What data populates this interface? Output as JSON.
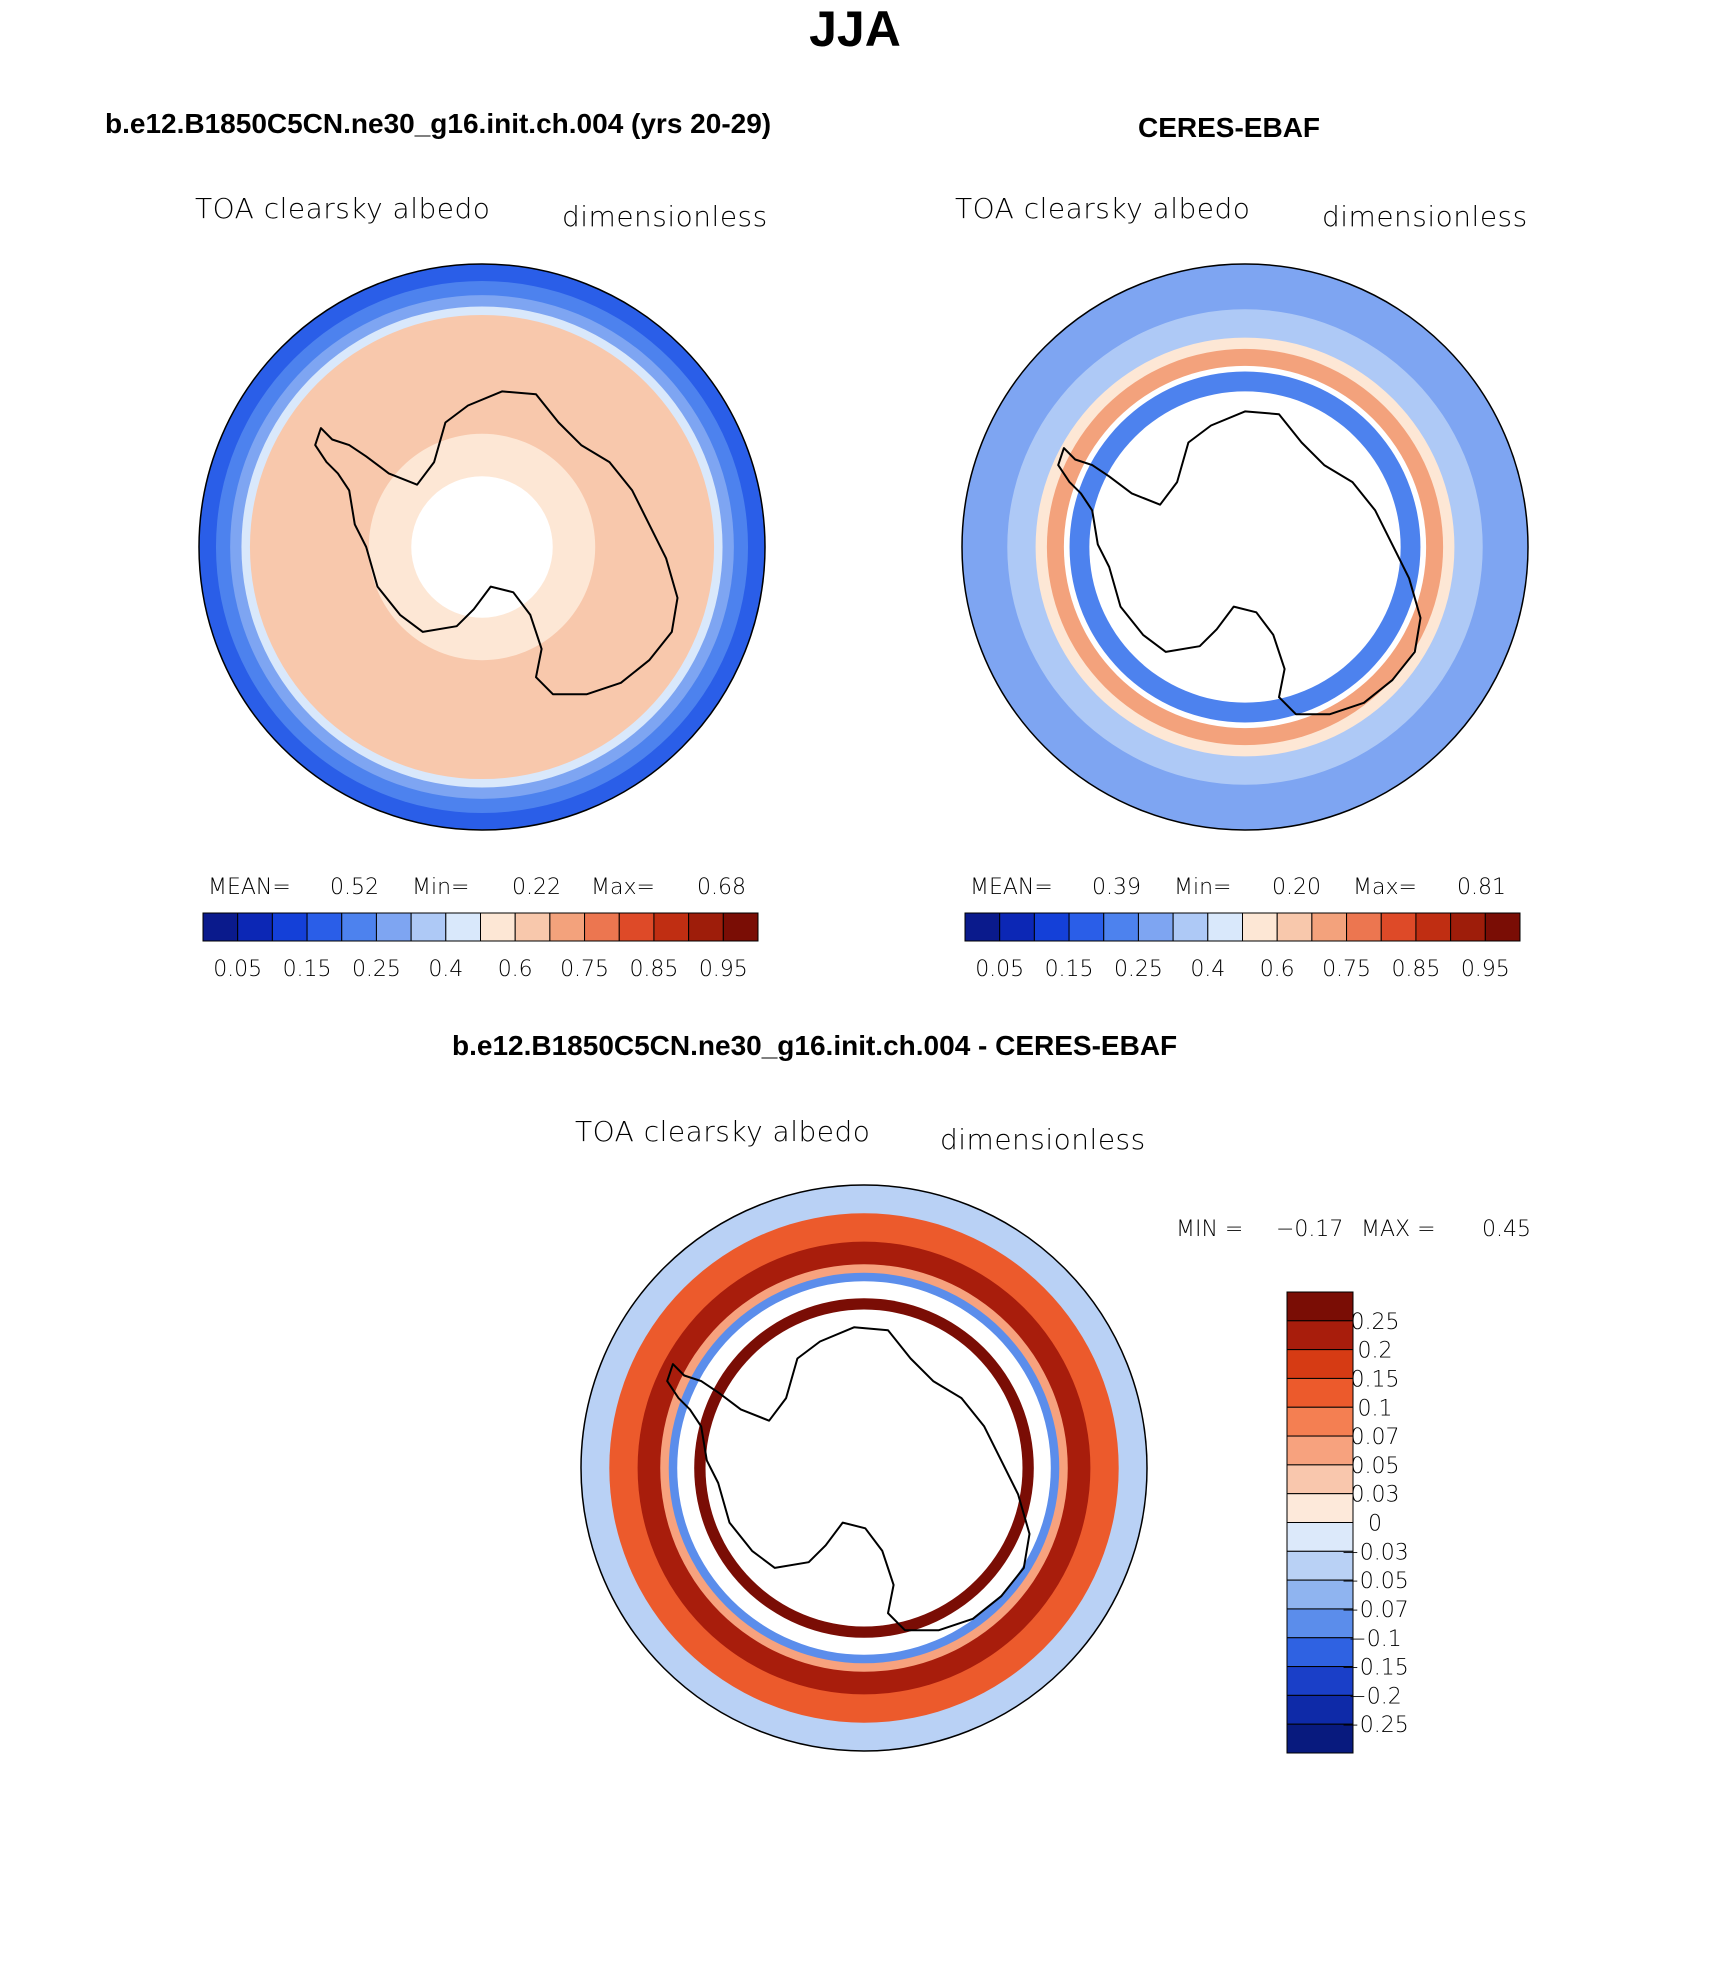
{
  "figure": {
    "title": "JJA",
    "panels": [
      {
        "id": "model",
        "title": "b.e12.B1850C5CN.ne30_g16.init.ch.004 (yrs 20-29)",
        "variable": "TOA clearsky albedo",
        "units": "dimensionless",
        "stats": {
          "mean_label": "MEAN=",
          "mean": "0.52",
          "min_label": "Min=",
          "min": "0.22",
          "max_label": "Max=",
          "max": "0.68"
        }
      },
      {
        "id": "obs",
        "title": "CERES-EBAF",
        "variable": "TOA clearsky albedo",
        "units": "dimensionless",
        "stats": {
          "mean_label": "MEAN=",
          "mean": "0.39",
          "min_label": "Min=",
          "min": "0.20",
          "max_label": "Max=",
          "max": "0.81"
        }
      },
      {
        "id": "diff",
        "title": "b.e12.B1850C5CN.ne30_g16.init.ch.004 - CERES-EBAF",
        "variable": "TOA clearsky albedo",
        "units": "dimensionless",
        "stats": {
          "min_label": "MIN =",
          "min": "−0.17",
          "max_label": "MAX =",
          "max": "0.45"
        }
      }
    ]
  },
  "chart_data": [
    {
      "type": "heatmap",
      "projection": "south-polar-stereographic",
      "title": "b.e12.B1850C5CN.ne30_g16.init.ch.004 (yrs 20-29)",
      "variable": "TOA clearsky albedo",
      "units": "dimensionless",
      "colorbar_labels": [
        "0.05",
        "0.15",
        "0.25",
        "0.4",
        "0.6",
        "0.75",
        "0.85",
        "0.95"
      ],
      "colorbar_colors": [
        "#0a1a8c",
        "#0c27b5",
        "#1440d8",
        "#2a5ee8",
        "#4d82ee",
        "#7ea5f2",
        "#aec9f6",
        "#d9e8fb",
        "#fde7d5",
        "#f8c8ac",
        "#f3a27c",
        "#ec7650",
        "#de4a28",
        "#c02e12",
        "#9e1d0a",
        "#7a0d05"
      ],
      "field_rings": [
        {
          "radius_frac": 1.0,
          "color": "#2a5ee8"
        },
        {
          "radius_frac": 0.94,
          "color": "#4d82ee"
        },
        {
          "radius_frac": 0.89,
          "color": "#7ea5f2"
        },
        {
          "radius_frac": 0.85,
          "color": "#d9e8fb"
        },
        {
          "radius_frac": 0.82,
          "color": "#f8c8ac"
        },
        {
          "radius_frac": 0.4,
          "color": "#fde7d5"
        },
        {
          "radius_frac": 0.25,
          "color": "#ffffff"
        }
      ],
      "stats": {
        "mean": 0.52,
        "min": 0.22,
        "max": 0.68
      }
    },
    {
      "type": "heatmap",
      "projection": "south-polar-stereographic",
      "title": "CERES-EBAF",
      "variable": "TOA clearsky albedo",
      "units": "dimensionless",
      "colorbar_labels": [
        "0.05",
        "0.15",
        "0.25",
        "0.4",
        "0.6",
        "0.75",
        "0.85",
        "0.95"
      ],
      "colorbar_colors": [
        "#0a1a8c",
        "#0c27b5",
        "#1440d8",
        "#2a5ee8",
        "#4d82ee",
        "#7ea5f2",
        "#aec9f6",
        "#d9e8fb",
        "#fde7d5",
        "#f8c8ac",
        "#f3a27c",
        "#ec7650",
        "#de4a28",
        "#c02e12",
        "#9e1d0a",
        "#7a0d05"
      ],
      "field_rings": [
        {
          "radius_frac": 1.0,
          "color": "#7ea5f2"
        },
        {
          "radius_frac": 0.84,
          "color": "#aec9f6"
        },
        {
          "radius_frac": 0.74,
          "color": "#fde7d5"
        },
        {
          "radius_frac": 0.7,
          "color": "#f3a27c"
        },
        {
          "radius_frac": 0.64,
          "color": "#ffffff"
        },
        {
          "radius_frac": 0.62,
          "color": "#4d82ee"
        },
        {
          "radius_frac": 0.55,
          "color": "#ffffff"
        }
      ],
      "stats": {
        "mean": 0.39,
        "min": 0.2,
        "max": 0.81
      }
    },
    {
      "type": "heatmap",
      "projection": "south-polar-stereographic",
      "title": "b.e12.B1850C5CN.ne30_g16.init.ch.004 - CERES-EBAF",
      "variable": "TOA clearsky albedo",
      "units": "dimensionless",
      "colorbar_labels": [
        "0.25",
        "0.2",
        "0.15",
        "0.1",
        "0.07",
        "0.05",
        "0.03",
        "0",
        "−0.03",
        "−0.05",
        "−0.07",
        "−0.1",
        "−0.15",
        "−0.2",
        "−0.25"
      ],
      "colorbar_colors": [
        "#7a0d05",
        "#a81d0c",
        "#d63b14",
        "#ec5a2c",
        "#f47f52",
        "#f7a27e",
        "#f9c7ad",
        "#fde9da",
        "#dce9fa",
        "#b9d1f5",
        "#8fb4f0",
        "#5b8deb",
        "#2f62e2",
        "#1a3fc8",
        "#0e2aa8",
        "#081a7e"
      ],
      "field_rings": [
        {
          "radius_frac": 1.0,
          "color": "#b9d1f5"
        },
        {
          "radius_frac": 0.9,
          "color": "#ec5a2c"
        },
        {
          "radius_frac": 0.8,
          "color": "#a81d0c"
        },
        {
          "radius_frac": 0.72,
          "color": "#f7a27e"
        },
        {
          "radius_frac": 0.69,
          "color": "#5b8deb"
        },
        {
          "radius_frac": 0.66,
          "color": "#ffffff"
        },
        {
          "radius_frac": 0.6,
          "color": "#7a0d05"
        },
        {
          "radius_frac": 0.56,
          "color": "#ffffff"
        }
      ],
      "stats": {
        "min": -0.17,
        "max": 0.45
      }
    }
  ]
}
